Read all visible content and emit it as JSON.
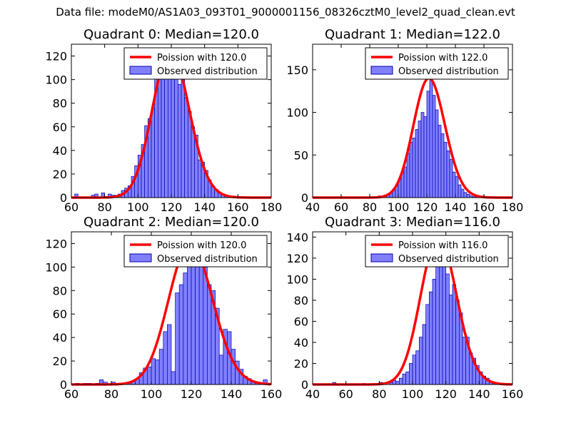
{
  "figure": {
    "suptitle": "Data file: modeM0/AS1A03_093T01_9000001156_08326cztM0_level2_quad_clean.evt",
    "colors": {
      "bar_fill": "#8080ff",
      "bar_edge": "#0000aa",
      "poisson_line": "#ff0000"
    }
  },
  "chart_data": [
    {
      "type": "bar",
      "title": "Quadrant 0: Median=120.0",
      "xlim": [
        60,
        180
      ],
      "ylim": [
        0,
        130
      ],
      "xticks": [
        60,
        80,
        100,
        120,
        140,
        160,
        180
      ],
      "yticks": [
        0,
        20,
        40,
        60,
        80,
        100,
        120
      ],
      "bin_width": 2,
      "bins": [
        [
          62,
          3
        ],
        [
          72,
          2
        ],
        [
          74,
          3
        ],
        [
          78,
          4
        ],
        [
          82,
          3
        ],
        [
          84,
          2
        ],
        [
          86,
          2
        ],
        [
          88,
          3
        ],
        [
          90,
          6
        ],
        [
          92,
          8
        ],
        [
          94,
          10
        ],
        [
          96,
          18
        ],
        [
          98,
          27
        ],
        [
          100,
          36
        ],
        [
          102,
          45
        ],
        [
          104,
          61
        ],
        [
          106,
          67
        ],
        [
          108,
          76
        ],
        [
          110,
          103
        ],
        [
          112,
          110
        ],
        [
          114,
          110
        ],
        [
          116,
          118
        ],
        [
          118,
          125
        ],
        [
          120,
          110
        ],
        [
          122,
          103
        ],
        [
          124,
          96
        ],
        [
          126,
          110
        ],
        [
          128,
          85
        ],
        [
          130,
          73
        ],
        [
          132,
          60
        ],
        [
          134,
          53
        ],
        [
          136,
          32
        ],
        [
          138,
          30
        ],
        [
          140,
          23
        ],
        [
          142,
          15
        ],
        [
          144,
          10
        ],
        [
          146,
          7
        ],
        [
          148,
          4
        ],
        [
          150,
          3
        ],
        [
          152,
          2
        ],
        [
          154,
          1
        ],
        [
          156,
          1
        ],
        [
          158,
          1
        ]
      ],
      "legend": {
        "line_label": "Poission with 120.0",
        "bar_label": "Observed distribution",
        "placement": "top-right"
      }
    },
    {
      "type": "bar",
      "title": "Quadrant 1: Median=122.0",
      "xlim": [
        40,
        180
      ],
      "ylim": [
        0,
        180
      ],
      "xticks": [
        40,
        60,
        80,
        100,
        120,
        140,
        160,
        180
      ],
      "yticks": [
        0,
        50,
        100,
        150
      ],
      "bin_width": 2,
      "bins": [
        [
          60,
          1
        ],
        [
          74,
          1
        ],
        [
          84,
          1
        ],
        [
          86,
          2
        ],
        [
          90,
          3
        ],
        [
          92,
          4
        ],
        [
          94,
          6
        ],
        [
          96,
          10
        ],
        [
          98,
          14
        ],
        [
          100,
          22
        ],
        [
          102,
          30
        ],
        [
          104,
          36
        ],
        [
          106,
          52
        ],
        [
          108,
          65
        ],
        [
          110,
          70
        ],
        [
          112,
          80
        ],
        [
          114,
          90
        ],
        [
          116,
          100
        ],
        [
          118,
          95
        ],
        [
          120,
          125
        ],
        [
          122,
          140
        ],
        [
          124,
          120
        ],
        [
          126,
          103
        ],
        [
          128,
          85
        ],
        [
          130,
          75
        ],
        [
          132,
          65
        ],
        [
          134,
          55
        ],
        [
          136,
          45
        ],
        [
          138,
          30
        ],
        [
          140,
          25
        ],
        [
          142,
          15
        ],
        [
          144,
          10
        ],
        [
          146,
          6
        ],
        [
          148,
          4
        ],
        [
          150,
          2
        ],
        [
          152,
          1
        ],
        [
          154,
          1
        ]
      ],
      "legend": {
        "line_label": "Poission with 122.0",
        "bar_label": "Observed distribution",
        "placement": "top-right"
      }
    },
    {
      "type": "bar",
      "title": "Quadrant 2: Median=120.0",
      "xlim": [
        60,
        160
      ],
      "ylim": [
        0,
        130
      ],
      "xticks": [
        60,
        80,
        100,
        120,
        140,
        160
      ],
      "yticks": [
        0,
        20,
        40,
        60,
        80,
        100,
        120
      ],
      "bin_width": 2,
      "bins": [
        [
          62,
          1
        ],
        [
          66,
          1
        ],
        [
          68,
          1
        ],
        [
          72,
          1
        ],
        [
          74,
          4
        ],
        [
          76,
          2
        ],
        [
          80,
          2
        ],
        [
          82,
          1
        ],
        [
          86,
          1
        ],
        [
          88,
          2
        ],
        [
          90,
          3
        ],
        [
          92,
          5
        ],
        [
          94,
          10
        ],
        [
          96,
          14
        ],
        [
          98,
          15
        ],
        [
          100,
          22
        ],
        [
          102,
          21
        ],
        [
          104,
          30
        ],
        [
          106,
          45
        ],
        [
          108,
          51
        ],
        [
          110,
          11
        ],
        [
          112,
          78
        ],
        [
          114,
          85
        ],
        [
          116,
          95
        ],
        [
          118,
          105
        ],
        [
          120,
          120
        ],
        [
          122,
          112
        ],
        [
          124,
          110
        ],
        [
          126,
          100
        ],
        [
          128,
          85
        ],
        [
          130,
          80
        ],
        [
          132,
          65
        ],
        [
          134,
          25
        ],
        [
          136,
          47
        ],
        [
          138,
          45
        ],
        [
          140,
          30
        ],
        [
          142,
          20
        ],
        [
          144,
          13
        ],
        [
          146,
          7
        ],
        [
          148,
          5
        ],
        [
          150,
          3
        ],
        [
          152,
          2
        ],
        [
          156,
          4
        ]
      ],
      "legend": {
        "line_label": "Poission with 120.0",
        "bar_label": "Observed distribution",
        "placement": "top-right"
      }
    },
    {
      "type": "bar",
      "title": "Quadrant 3: Median=116.0",
      "xlim": [
        40,
        160
      ],
      "ylim": [
        0,
        145
      ],
      "xticks": [
        40,
        60,
        80,
        100,
        120,
        140,
        160
      ],
      "yticks": [
        0,
        20,
        40,
        60,
        80,
        100,
        120,
        140
      ],
      "bin_width": 2,
      "bins": [
        [
          52,
          2
        ],
        [
          70,
          1
        ],
        [
          76,
          1
        ],
        [
          80,
          2
        ],
        [
          86,
          2
        ],
        [
          88,
          4
        ],
        [
          90,
          3
        ],
        [
          92,
          6
        ],
        [
          94,
          10
        ],
        [
          96,
          12
        ],
        [
          98,
          20
        ],
        [
          100,
          28
        ],
        [
          102,
          32
        ],
        [
          104,
          45
        ],
        [
          106,
          57
        ],
        [
          108,
          76
        ],
        [
          110,
          88
        ],
        [
          112,
          100
        ],
        [
          114,
          115
        ],
        [
          116,
          120
        ],
        [
          118,
          140
        ],
        [
          120,
          105
        ],
        [
          122,
          85
        ],
        [
          124,
          95
        ],
        [
          126,
          80
        ],
        [
          128,
          68
        ],
        [
          130,
          45
        ],
        [
          132,
          45
        ],
        [
          134,
          30
        ],
        [
          136,
          25
        ],
        [
          138,
          18
        ],
        [
          140,
          12
        ],
        [
          142,
          8
        ],
        [
          144,
          6
        ],
        [
          146,
          3
        ],
        [
          148,
          2
        ],
        [
          150,
          1
        ],
        [
          154,
          1
        ]
      ],
      "legend": {
        "line_label": "Poission with 116.0",
        "bar_label": "Observed distribution",
        "placement": "top-right"
      }
    }
  ]
}
